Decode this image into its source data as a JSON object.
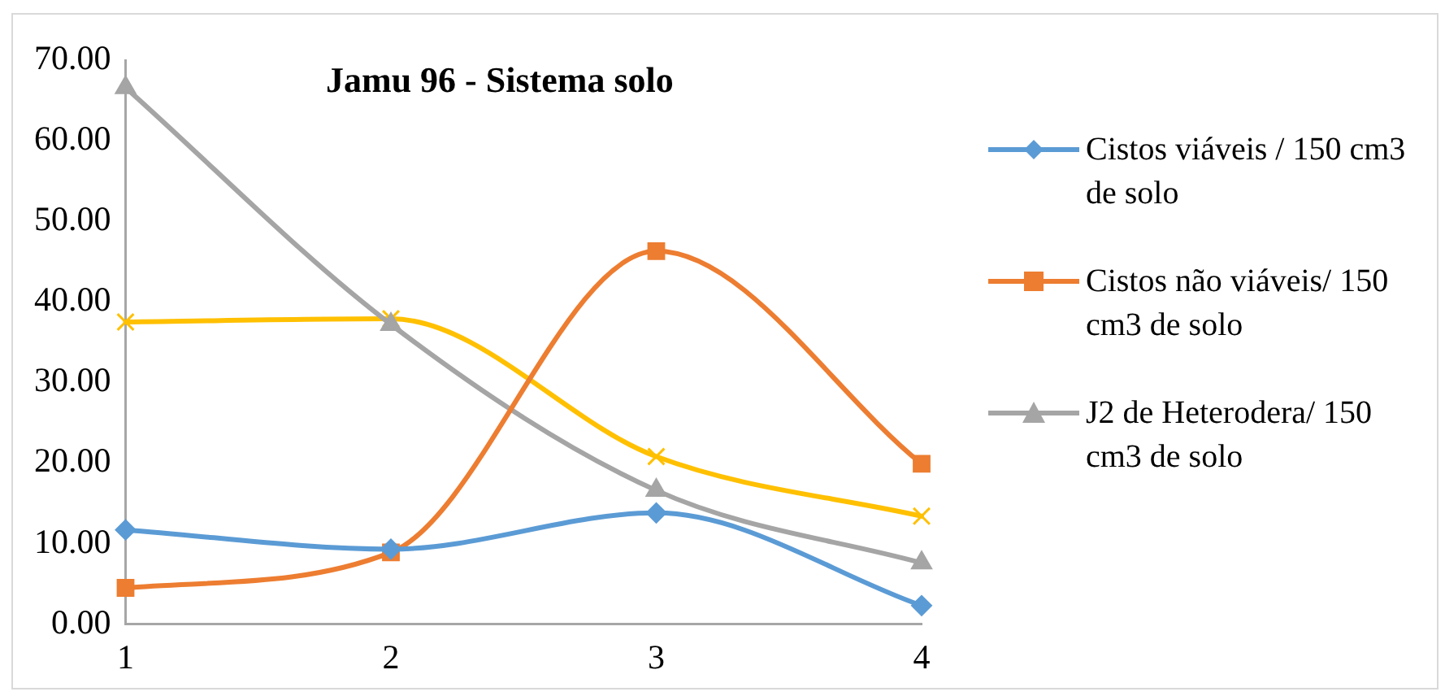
{
  "chart_data": {
    "type": "line",
    "title": "Jamu 96 - Sistema solo",
    "categories": [
      "1",
      "2",
      "3",
      "4"
    ],
    "series": [
      {
        "name": "Cistos viáveis / 150 cm3 de solo",
        "color": "#5b9bd5",
        "marker": "diamond",
        "values": [
          11.7,
          9.3,
          13.8,
          2.3
        ]
      },
      {
        "name": "Cistos não viáveis/ 150 cm3 de solo",
        "color": "#ed7d31",
        "marker": "square",
        "values": [
          4.5,
          8.9,
          46.3,
          19.9
        ]
      },
      {
        "name": "J2 de Heterodera/ 150 cm3 de solo",
        "color": "#a5a5a5",
        "marker": "triangle",
        "values": [
          66.6,
          37.2,
          16.6,
          7.6
        ]
      },
      {
        "color": "#ffc000",
        "marker": "cross",
        "values": [
          37.5,
          37.9,
          20.8,
          13.4
        ]
      }
    ],
    "ylim": [
      0,
      70
    ],
    "yticks": [
      {
        "value": 0,
        "label": "0.00"
      },
      {
        "value": 10,
        "label": "10.00"
      },
      {
        "value": 20,
        "label": "20.00"
      },
      {
        "value": 30,
        "label": "30.00"
      },
      {
        "value": 40,
        "label": "40.00"
      },
      {
        "value": 50,
        "label": "50.00"
      },
      {
        "value": 60,
        "label": "60.00"
      },
      {
        "value": 70,
        "label": "70.00"
      }
    ],
    "grid": false,
    "legend": "right"
  }
}
